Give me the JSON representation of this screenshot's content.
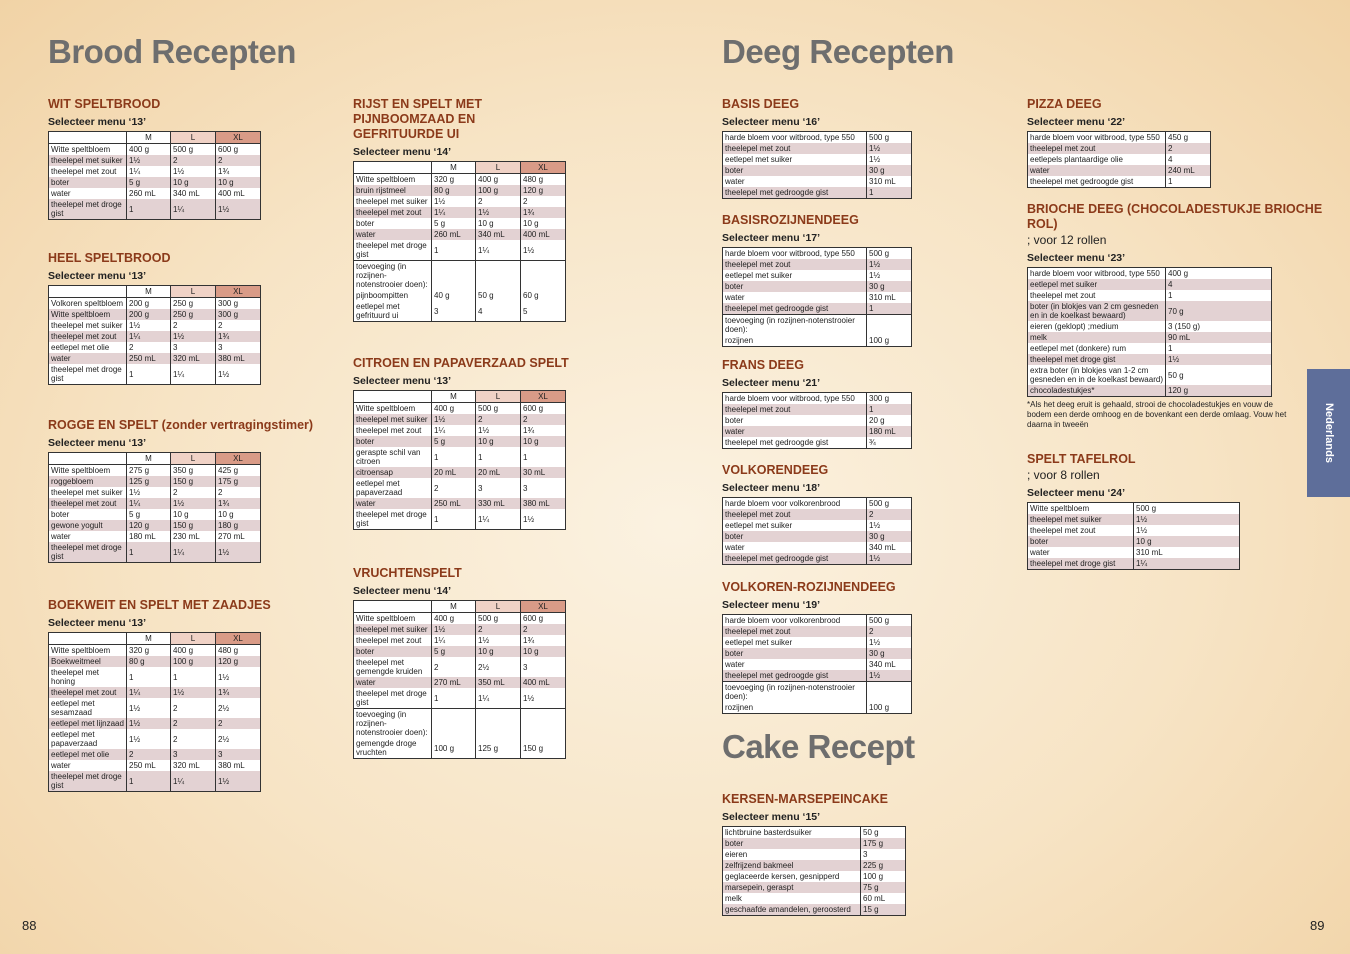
{
  "left_title": "Brood Recepten",
  "right_title": "Deeg Recepten",
  "cake_title": "Cake Recept",
  "side_tab": "Nederlands",
  "page_left": "88",
  "page_right": "89",
  "sizes": [
    "M",
    "L",
    "XL"
  ],
  "sections": [
    {
      "key": "wit",
      "title": "WIT SPELTBROOD",
      "menu": "Selecteer menu ‘13’",
      "cols": 4,
      "rows": [
        [
          "Witte speltbloem",
          "400 g",
          "500 g",
          "600 g"
        ],
        [
          "theelepel met suiker",
          "1½",
          "2",
          "2"
        ],
        [
          "theelepel met zout",
          "1¼",
          "1½",
          "1¾"
        ],
        [
          "boter",
          "5 g",
          "10 g",
          "10 g"
        ],
        [
          "water",
          "260 mL",
          "340 mL",
          "400 mL"
        ],
        [
          "theelepel met droge gist",
          "1",
          "1¼",
          "1½"
        ]
      ]
    },
    {
      "key": "heel",
      "title": "HEEL SPELTBROOD",
      "menu": "Selecteer menu ‘13’",
      "cols": 4,
      "rows": [
        [
          "Volkoren speltbloem",
          "200 g",
          "250 g",
          "300 g"
        ],
        [
          "Witte speltbloem",
          "200 g",
          "250 g",
          "300 g"
        ],
        [
          "theelepel met suiker",
          "1½",
          "2",
          "2"
        ],
        [
          "theelepel met zout",
          "1¼",
          "1½",
          "1¾"
        ],
        [
          "eetlepel met olie",
          "2",
          "3",
          "3"
        ],
        [
          "water",
          "250 mL",
          "320 mL",
          "380 mL"
        ],
        [
          "theelepel met droge gist",
          "1",
          "1¼",
          "1½"
        ]
      ]
    },
    {
      "key": "rogge",
      "title": "ROGGE EN SPELT (zonder vertragingstimer)",
      "menu": "Selecteer menu ‘13’",
      "cols": 4,
      "rows": [
        [
          "Witte speltbloem",
          "275 g",
          "350 g",
          "425 g"
        ],
        [
          "roggebloem",
          "125 g",
          "150 g",
          "175 g"
        ],
        [
          "theelepel met suiker",
          "1½",
          "2",
          "2"
        ],
        [
          "theelepel met zout",
          "1¼",
          "1½",
          "1¾"
        ],
        [
          "boter",
          "5 g",
          "10 g",
          "10 g"
        ],
        [
          "gewone yogult",
          "120 g",
          "150 g",
          "180 g"
        ],
        [
          "water",
          "180 mL",
          "230 mL",
          "270 mL"
        ],
        [
          "theelepel met droge gist",
          "1",
          "1¼",
          "1½"
        ]
      ]
    },
    {
      "key": "boekweit",
      "title": "BOEKWEIT EN SPELT MET ZAADJES",
      "menu": "Selecteer menu ‘13’",
      "cols": 4,
      "rows": [
        [
          "Witte speltbloem",
          "320 g",
          "400 g",
          "480 g"
        ],
        [
          "Boekweitmeel",
          "80 g",
          "100 g",
          "120 g"
        ],
        [
          "theelepel met honing",
          "1",
          "1",
          "1½"
        ],
        [
          "theelepel met zout",
          "1¼",
          "1½",
          "1¾"
        ],
        [
          "eetlepel met sesamzaad",
          "1½",
          "2",
          "2½"
        ],
        [
          "eetlepel met lijnzaad",
          "1½",
          "2",
          "2"
        ],
        [
          "eetlepel met papaverzaad",
          "1½",
          "2",
          "2½"
        ],
        [
          "eetlepel met olie",
          "2",
          "3",
          "3"
        ],
        [
          "water",
          "250 mL",
          "320 mL",
          "380 mL"
        ],
        [
          "theelepel met droge gist",
          "1",
          "1¼",
          "1½"
        ]
      ]
    },
    {
      "key": "rijst",
      "title": "RIJST EN SPELT MET PIJNBOOMZAAD EN GEFRITUURDE UI",
      "menu": "Selecteer menu ‘14’",
      "cols": 4,
      "rows": [
        [
          "Witte speltbloem",
          "320 g",
          "400 g",
          "480 g"
        ],
        [
          "bruin rijstmeel",
          "80 g",
          "100 g",
          "120 g"
        ],
        [
          "theelepel met suiker",
          "1½",
          "2",
          "2"
        ],
        [
          "theelepel met zout",
          "1¼",
          "1½",
          "1¾"
        ],
        [
          "boter",
          "5 g",
          "10 g",
          "10 g"
        ],
        [
          "water",
          "260 mL",
          "340 mL",
          "400 mL"
        ],
        [
          "theelepel met droge gist",
          "1",
          "1¼",
          "1½"
        ]
      ],
      "extra_label": "toevoeging (in rozijnen-notenstrooier doen):",
      "extra_rows": [
        [
          "pijnboompitten",
          "40 g",
          "50 g",
          "60 g"
        ],
        [
          "eetlepel met gefrituurd ui",
          "3",
          "4",
          "5"
        ]
      ]
    },
    {
      "key": "citroen",
      "title": "CITROEN EN PAPAVERZAAD SPELT",
      "menu": "Selecteer menu ‘13’",
      "cols": 4,
      "rows": [
        [
          "Witte speltbloem",
          "400 g",
          "500 g",
          "600 g"
        ],
        [
          "theelepel met suiker",
          "1½",
          "2",
          "2"
        ],
        [
          "theelepel met zout",
          "1¼",
          "1½",
          "1¾"
        ],
        [
          "boter",
          "5 g",
          "10 g",
          "10 g"
        ],
        [
          "geraspte schil van citroen",
          "1",
          "1",
          "1"
        ],
        [
          "citroensap",
          "20 mL",
          "20 mL",
          "30 mL"
        ],
        [
          "eetlepel met papaverzaad",
          "2",
          "3",
          "3"
        ],
        [
          "water",
          "250 mL",
          "330 mL",
          "380 mL"
        ],
        [
          "theelepel met droge gist",
          "1",
          "1¼",
          "1½"
        ]
      ]
    },
    {
      "key": "vrucht",
      "title": "VRUCHTENSPELT",
      "menu": "Selecteer menu ‘14’",
      "cols": 4,
      "rows": [
        [
          "Witte speltbloem",
          "400 g",
          "500 g",
          "600 g"
        ],
        [
          "theelepel met suiker",
          "1½",
          "2",
          "2"
        ],
        [
          "theelepel met zout",
          "1¼",
          "1½",
          "1¾"
        ],
        [
          "boter",
          "5 g",
          "10 g",
          "10 g"
        ],
        [
          "theelepel met gemengde kruiden",
          "2",
          "2½",
          "3"
        ],
        [
          "water",
          "270 mL",
          "350 mL",
          "400 mL"
        ],
        [
          "theelepel met droge gist",
          "1",
          "1¼",
          "1½"
        ]
      ],
      "extra_label": "toevoeging (in rozijnen-notenstrooier doen):",
      "extra_rows": [
        [
          "gemengde droge vruchten",
          "100 g",
          "125 g",
          "150 g"
        ]
      ]
    },
    {
      "key": "basis",
      "title": "BASIS DEEG",
      "menu": "Selecteer menu ‘16’",
      "cols": 2,
      "rows": [
        [
          "harde bloem voor witbrood, type 550",
          "500 g"
        ],
        [
          "theelepel met zout",
          "1½"
        ],
        [
          "eetlepel met suiker",
          "1½"
        ],
        [
          "boter",
          "30 g"
        ],
        [
          "water",
          "310 mL"
        ],
        [
          "theelepel met gedroogde gist",
          "1"
        ]
      ]
    },
    {
      "key": "basisroz",
      "title": "BASISROZIJNENDEEG",
      "menu": "Selecteer menu ‘17’",
      "cols": 2,
      "rows": [
        [
          "harde bloem voor witbrood, type 550",
          "500 g"
        ],
        [
          "theelepel met zout",
          "1½"
        ],
        [
          "eetlepel met suiker",
          "1½"
        ],
        [
          "boter",
          "30 g"
        ],
        [
          "water",
          "310 mL"
        ],
        [
          "theelepel met gedroogde gist",
          "1"
        ]
      ],
      "extra_label": "toevoeging (in rozijnen-notenstrooier doen):",
      "extra_rows": [
        [
          "rozijnen",
          "100 g"
        ]
      ]
    },
    {
      "key": "frans",
      "title": "FRANS DEEG",
      "menu": "Selecteer menu ‘21’",
      "cols": 2,
      "rows": [
        [
          "harde bloem voor witbrood, type 550",
          "300 g"
        ],
        [
          "theelepel met zout",
          "1"
        ],
        [
          "boter",
          "20 g"
        ],
        [
          "water",
          "180 mL"
        ],
        [
          "theelepel met gedroogde gist",
          "¾"
        ]
      ]
    },
    {
      "key": "volkoren",
      "title": "VOLKORENDEEG",
      "menu": "Selecteer menu ‘18’",
      "cols": 2,
      "rows": [
        [
          "harde bloem voor volkorenbrood",
          "500 g"
        ],
        [
          "theelepel met zout",
          "2"
        ],
        [
          "eetlepel met suiker",
          "1½"
        ],
        [
          "boter",
          "30 g"
        ],
        [
          "water",
          "340 mL"
        ],
        [
          "theelepel met gedroogde gist",
          "1½"
        ]
      ]
    },
    {
      "key": "volkroz",
      "title": "VOLKOREN-ROZIJNENDEEG",
      "menu": "Selecteer menu ‘19’",
      "cols": 2,
      "rows": [
        [
          "harde bloem voor volkorenbrood",
          "500 g"
        ],
        [
          "theelepel met zout",
          "2"
        ],
        [
          "eetlepel met suiker",
          "1½"
        ],
        [
          "boter",
          "30 g"
        ],
        [
          "water",
          "340 mL"
        ],
        [
          "theelepel met gedroogde gist",
          "1½"
        ]
      ],
      "extra_label": "toevoeging (in rozijnen-notenstrooier doen):",
      "extra_rows": [
        [
          "rozijnen",
          "100 g"
        ]
      ]
    },
    {
      "key": "kersen",
      "title": "KERSEN-MARSEPEINCAKE",
      "menu": "Selecteer menu ‘15’",
      "cols": 2,
      "rows": [
        [
          "lichtbruine basterdsuiker",
          "50 g"
        ],
        [
          "boter",
          "175 g"
        ],
        [
          "eieren",
          "3"
        ],
        [
          "zelfrijzend bakmeel",
          "225 g"
        ],
        [
          "geglaceerde kersen, gesnipperd",
          "100 g"
        ],
        [
          "marsepein, geraspt",
          "75 g"
        ],
        [
          "melk",
          "60 mL"
        ],
        [
          "geschaafde amandelen, geroosterd",
          "15 g"
        ]
      ]
    },
    {
      "key": "pizza",
      "title": "PIZZA DEEG",
      "menu": "Selecteer menu ‘22’",
      "cols": 2,
      "rows": [
        [
          "harde bloem voor witbrood, type 550",
          "450 g"
        ],
        [
          "theelepel met zout",
          "2"
        ],
        [
          "eetlepels plantaardige olie",
          "4"
        ],
        [
          "water",
          "240 mL"
        ],
        [
          "theelepel met gedroogde gist",
          "1"
        ]
      ]
    },
    {
      "key": "brioche",
      "title": "BRIOCHE DEEG (CHOCOLADESTUKJE BRIOCHE ROL)",
      "note": "; voor 12 rollen",
      "menu": "Selecteer menu ‘23’",
      "cols": 2,
      "rows": [
        [
          "harde bloem voor witbrood, type 550",
          "400 g"
        ],
        [
          "eetlepel met suiker",
          "4"
        ],
        [
          "theelepel met zout",
          "1"
        ],
        [
          "boter (in blokjes van 2 cm gesneden en in de koelkast bewaard)",
          "70 g"
        ],
        [
          "eieren (geklopt) ;medium",
          "3 (150 g)"
        ],
        [
          "melk",
          "90 mL"
        ],
        [
          "eetlepel met (donkere) rum",
          "1"
        ],
        [
          "theelepel met droge gist",
          "1½"
        ],
        [
          "extra boter (in blokjes van 1-2 cm gesneden en in de koelkast bewaard)",
          "50 g"
        ],
        [
          "chocoladestukjes*",
          "120 g"
        ]
      ],
      "footnote": "*Als het deeg eruit is gehaald, strooi de chocoladestukjes en vouw de bodem een derde omhoog en de bovenkant een derde omlaag. Vouw het daarna in tweeën"
    },
    {
      "key": "tafelrol",
      "title": "SPELT TAFELROL",
      "note": "; voor 8 rollen",
      "menu": "Selecteer menu ‘24’",
      "cols": 2,
      "rows": [
        [
          "Witte speltbloem",
          "500 g"
        ],
        [
          "theelepel met suiker",
          "1½"
        ],
        [
          "theelepel met zout",
          "1½"
        ],
        [
          "boter",
          "10 g"
        ],
        [
          "water",
          "310 mL"
        ],
        [
          "theelepel met droge gist",
          "1¼"
        ]
      ]
    }
  ]
}
